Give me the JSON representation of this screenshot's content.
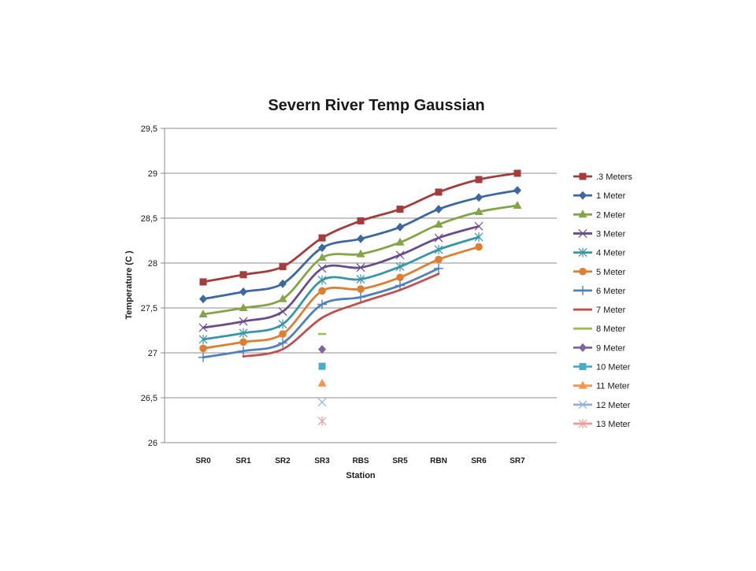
{
  "chart_data": {
    "type": "line",
    "title": "Severn River Temp Gaussian",
    "xlabel": "Station",
    "ylabel": "Temperature (C )",
    "categories": [
      "SR0",
      "SR1",
      "SR2",
      "SR3",
      "RBS",
      "SR5",
      "RBN",
      "SR6",
      "SR7"
    ],
    "ylim": [
      26,
      29.5
    ],
    "yticks": [
      26,
      26.5,
      27,
      27.5,
      28,
      28.5,
      29,
      29.5
    ],
    "ytick_labels": [
      "26",
      "26,5",
      "27",
      "27,5",
      "28",
      "28,5",
      "29",
      "29,5"
    ],
    "grid": "horizontal",
    "legend_position": "right",
    "line_style": "smoothed",
    "series": [
      {
        "name": ".3 Meters",
        "color": "#a33c3a",
        "marker": "square",
        "values": [
          27.79,
          27.87,
          27.96,
          28.28,
          28.47,
          28.6,
          28.79,
          28.93,
          29.0
        ]
      },
      {
        "name": "1 Meter",
        "color": "#3c67a0",
        "marker": "diamond",
        "values": [
          27.6,
          27.68,
          27.77,
          28.17,
          28.27,
          28.4,
          28.6,
          28.73,
          28.81
        ]
      },
      {
        "name": "2 Meter",
        "color": "#84a547",
        "marker": "triangle",
        "values": [
          27.43,
          27.5,
          27.6,
          28.06,
          28.1,
          28.23,
          28.43,
          28.57,
          28.64
        ]
      },
      {
        "name": "3 Meter",
        "color": "#6a4c8c",
        "marker": "x",
        "values": [
          27.28,
          27.35,
          27.46,
          27.94,
          27.95,
          28.09,
          28.28,
          28.41,
          null
        ]
      },
      {
        "name": "4 Meter",
        "color": "#3896a9",
        "marker": "star",
        "values": [
          27.15,
          27.22,
          27.32,
          27.81,
          27.82,
          27.96,
          28.15,
          28.29,
          null
        ]
      },
      {
        "name": "5 Meter",
        "color": "#dd7f32",
        "marker": "circle",
        "values": [
          27.05,
          27.12,
          27.21,
          27.69,
          27.71,
          27.84,
          28.04,
          28.18,
          null
        ]
      },
      {
        "name": "6 Meter",
        "color": "#4f81bd",
        "marker": "plus",
        "values": [
          26.95,
          27.02,
          27.11,
          27.54,
          27.62,
          27.75,
          27.94,
          null,
          null
        ]
      },
      {
        "name": "7 Meter",
        "color": "#c0504d",
        "marker": "none",
        "values": [
          null,
          26.96,
          27.04,
          27.39,
          27.56,
          27.7,
          27.88,
          null,
          null
        ]
      },
      {
        "name": "8 Meter",
        "color": "#9bbb59",
        "marker": "dash",
        "values": [
          null,
          null,
          null,
          27.21,
          null,
          null,
          null,
          null,
          null
        ]
      },
      {
        "name": "9 Meter",
        "color": "#8064a2",
        "marker": "diamond",
        "values": [
          null,
          null,
          null,
          27.04,
          null,
          null,
          null,
          null,
          null
        ]
      },
      {
        "name": "10 Meter",
        "color": "#4bacc6",
        "marker": "square",
        "values": [
          null,
          null,
          null,
          26.85,
          null,
          null,
          null,
          null,
          null
        ]
      },
      {
        "name": "11 Meter",
        "color": "#f79646",
        "marker": "triangle",
        "values": [
          null,
          null,
          null,
          26.66,
          null,
          null,
          null,
          null,
          null
        ]
      },
      {
        "name": "12 Meter",
        "color": "#95b3d7",
        "marker": "x",
        "values": [
          null,
          null,
          null,
          26.45,
          null,
          null,
          null,
          null,
          null
        ]
      },
      {
        "name": "13 Meter",
        "color": "#e6a09e",
        "marker": "star",
        "values": [
          null,
          null,
          null,
          26.24,
          null,
          null,
          null,
          null,
          null
        ]
      }
    ]
  }
}
